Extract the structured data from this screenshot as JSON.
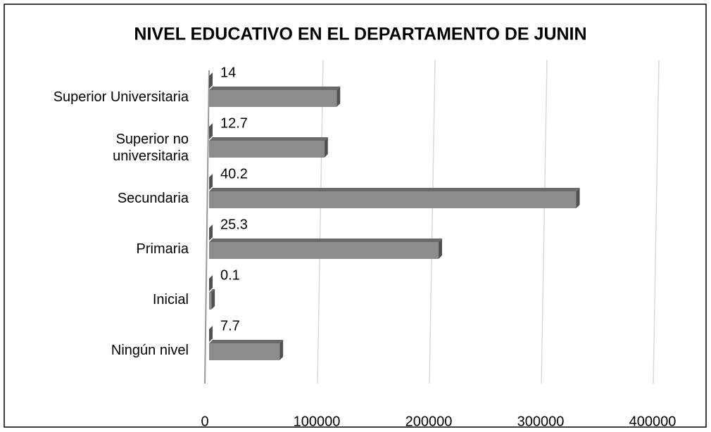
{
  "chart_data": {
    "type": "bar",
    "orientation": "horizontal",
    "title": "NIVEL EDUCATIVO EN EL DEPARTAMENTO DE JUNIN",
    "categories": [
      "Ningún nivel",
      "Inicial",
      "Primaria",
      "Secundaria",
      "Superior no\nuniversitaria",
      "Superior Universitaria"
    ],
    "series": [
      {
        "color": "#8c8c8c",
        "values": [
          63000,
          2000,
          205000,
          328000,
          103000,
          114000
        ]
      },
      {
        "color": "#8c8c8c",
        "values": [
          7.7,
          0.1,
          25.3,
          40.2,
          12.7,
          14
        ]
      }
    ],
    "xlim": [
      0,
      400000
    ],
    "xticks": [
      0,
      100000,
      200000,
      300000,
      400000
    ],
    "grid": true
  }
}
